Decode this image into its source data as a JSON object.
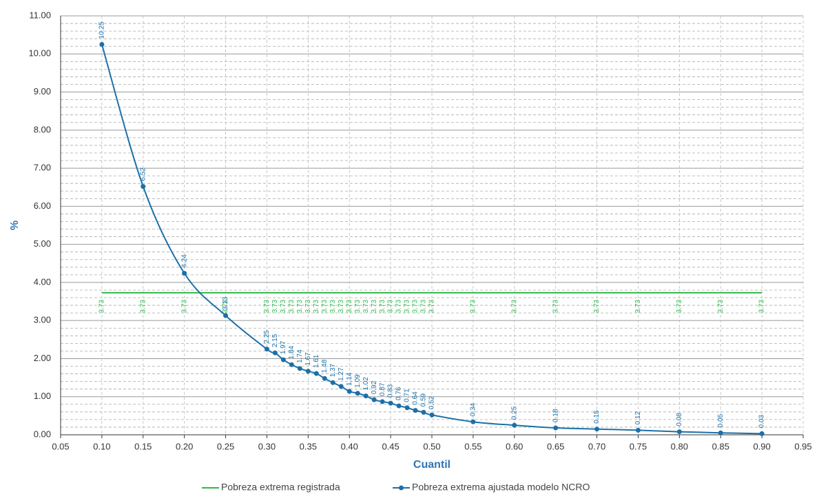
{
  "chart_data": {
    "type": "line",
    "x_label": "Cuantil",
    "y_label": "%",
    "x": [
      0.1,
      0.15,
      0.2,
      0.25,
      0.3,
      0.31,
      0.32,
      0.33,
      0.34,
      0.35,
      0.36,
      0.37,
      0.38,
      0.39,
      0.4,
      0.41,
      0.42,
      0.43,
      0.44,
      0.45,
      0.46,
      0.47,
      0.48,
      0.49,
      0.5,
      0.55,
      0.6,
      0.65,
      0.7,
      0.75,
      0.8,
      0.85,
      0.9
    ],
    "series": [
      {
        "name": "Pobreza extrema registrada",
        "color": "#2db84b",
        "values": [
          3.73,
          3.73,
          3.73,
          3.73,
          3.73,
          3.73,
          3.73,
          3.73,
          3.73,
          3.73,
          3.73,
          3.73,
          3.73,
          3.73,
          3.73,
          3.73,
          3.73,
          3.73,
          3.73,
          3.73,
          3.73,
          3.73,
          3.73,
          3.73,
          3.73,
          3.73,
          3.73,
          3.73,
          3.73,
          3.73,
          3.73,
          3.73,
          3.73
        ]
      },
      {
        "name": "Pobreza extrema ajustada modelo NCRO",
        "color": "#1b70a8",
        "values": [
          10.25,
          6.52,
          4.24,
          3.13,
          2.25,
          2.15,
          1.97,
          1.84,
          1.74,
          1.67,
          1.61,
          1.48,
          1.37,
          1.27,
          1.14,
          1.09,
          1.02,
          0.92,
          0.87,
          0.83,
          0.76,
          0.71,
          0.64,
          0.59,
          0.52,
          0.34,
          0.25,
          0.18,
          0.15,
          0.12,
          0.08,
          0.05,
          0.03
        ]
      }
    ],
    "xlim": [
      0.05,
      0.95
    ],
    "xticks": [
      0.05,
      {
        "value": 0.1,
        "label": "0.10"
      },
      0.15,
      {
        "value": 0.2,
        "label": "0.20"
      },
      0.25,
      {
        "value": 0.3,
        "label": "0.30"
      },
      0.35,
      {
        "value": 0.4,
        "label": "0.40"
      },
      0.45,
      {
        "value": 0.5,
        "label": "0.50"
      },
      0.55,
      {
        "value": 0.6,
        "label": "0.60"
      },
      0.65,
      {
        "value": 0.7,
        "label": "0.70"
      },
      0.75,
      {
        "value": 0.8,
        "label": "0.80"
      },
      0.85,
      {
        "value": 0.9,
        "label": "0.90"
      },
      0.95
    ],
    "ylim": [
      0,
      11
    ],
    "yticks": [
      {
        "value": 0,
        "label": "0.00"
      },
      {
        "value": 1,
        "label": "1.00"
      },
      {
        "value": 2,
        "label": "2.00"
      },
      {
        "value": 3,
        "label": "3.00"
      },
      {
        "value": 4,
        "label": "4.00"
      },
      {
        "value": 5,
        "label": "5.00"
      },
      {
        "value": 6,
        "label": "6.00"
      },
      {
        "value": 7,
        "label": "7.00"
      },
      {
        "value": 8,
        "label": "8.00"
      },
      {
        "value": 9,
        "label": "9.00"
      },
      {
        "value": 10,
        "label": "10.00"
      },
      {
        "value": 11,
        "label": "11.00"
      }
    ],
    "grid": true,
    "legend": "bottom"
  }
}
